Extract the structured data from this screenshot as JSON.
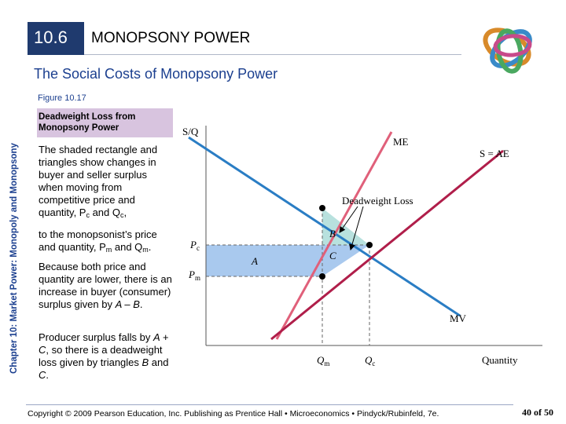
{
  "header": {
    "section": "10.6",
    "title": "MONOPSONY POWER",
    "subtitle": "The Social Costs of Monopsony Power"
  },
  "side_label": "Chapter 10: Market Power: Monopoly and Monopsony",
  "figure_label": "Figure 10.17",
  "box_title": "Deadweight Loss from Monopsony Power",
  "paragraphs": [
    [
      "The shaded rectangle and triangles show changes in buyer and seller surplus when moving from competitive price and quantity, P",
      "c",
      " and Q",
      "c",
      ","
    ],
    [
      "to the monopsonist’s price and quantity, P",
      "m",
      " and Q",
      "m",
      "."
    ],
    [
      "Because both price and quantity are lower, there is an increase in buyer (consumer) surplus given by ",
      "A – B",
      "."
    ],
    [
      "Producer surplus falls by ",
      "A + C",
      ", so there is a deadweight loss given by triangles ",
      "B",
      " and ",
      "C",
      "."
    ]
  ],
  "diagram": {
    "y_axis": "S/Q",
    "x_axis": "Quantity",
    "me": "ME",
    "supply": "S = AE",
    "mv": "MV",
    "deadweight_loss": "Deadweight Loss",
    "area_a": "A",
    "area_b": "B",
    "area_c": "C",
    "pc": [
      "P",
      "c"
    ],
    "pm": [
      "P",
      "m"
    ],
    "qm": [
      "Q",
      "m"
    ],
    "qc": [
      "Q",
      "c"
    ]
  },
  "footer": {
    "copyright": "Copyright © 2009 Pearson Education, Inc. Publishing as Prentice Hall • Microeconomics • Pindyck/Rubinfeld, 7e.",
    "page": "40 of 50"
  }
}
